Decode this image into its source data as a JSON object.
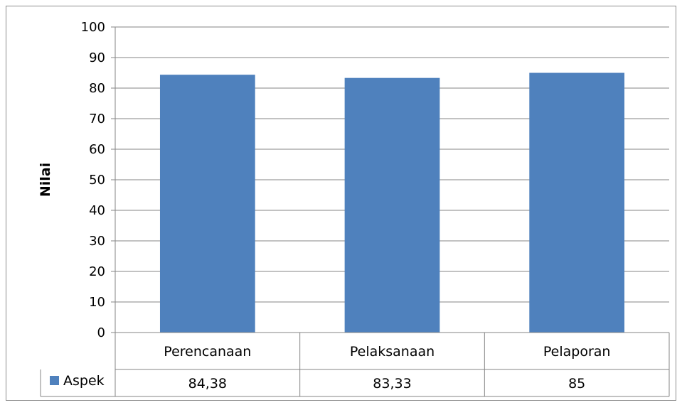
{
  "chart_data": {
    "type": "bar",
    "title": "",
    "xlabel": "",
    "ylabel": "Nilai",
    "ylim": [
      0,
      100
    ],
    "yticks": [
      0,
      10,
      20,
      30,
      40,
      50,
      60,
      70,
      80,
      90,
      100
    ],
    "grid": true,
    "categories": [
      "Perencanaan",
      "Pelaksanaan",
      "Pelaporan"
    ],
    "series": [
      {
        "name": "Aspek",
        "color": "#4f81bd",
        "values": [
          84.38,
          83.33,
          85
        ],
        "value_labels": [
          "84,38",
          "83,33",
          "85"
        ]
      }
    ],
    "legend": "data-table-left"
  }
}
